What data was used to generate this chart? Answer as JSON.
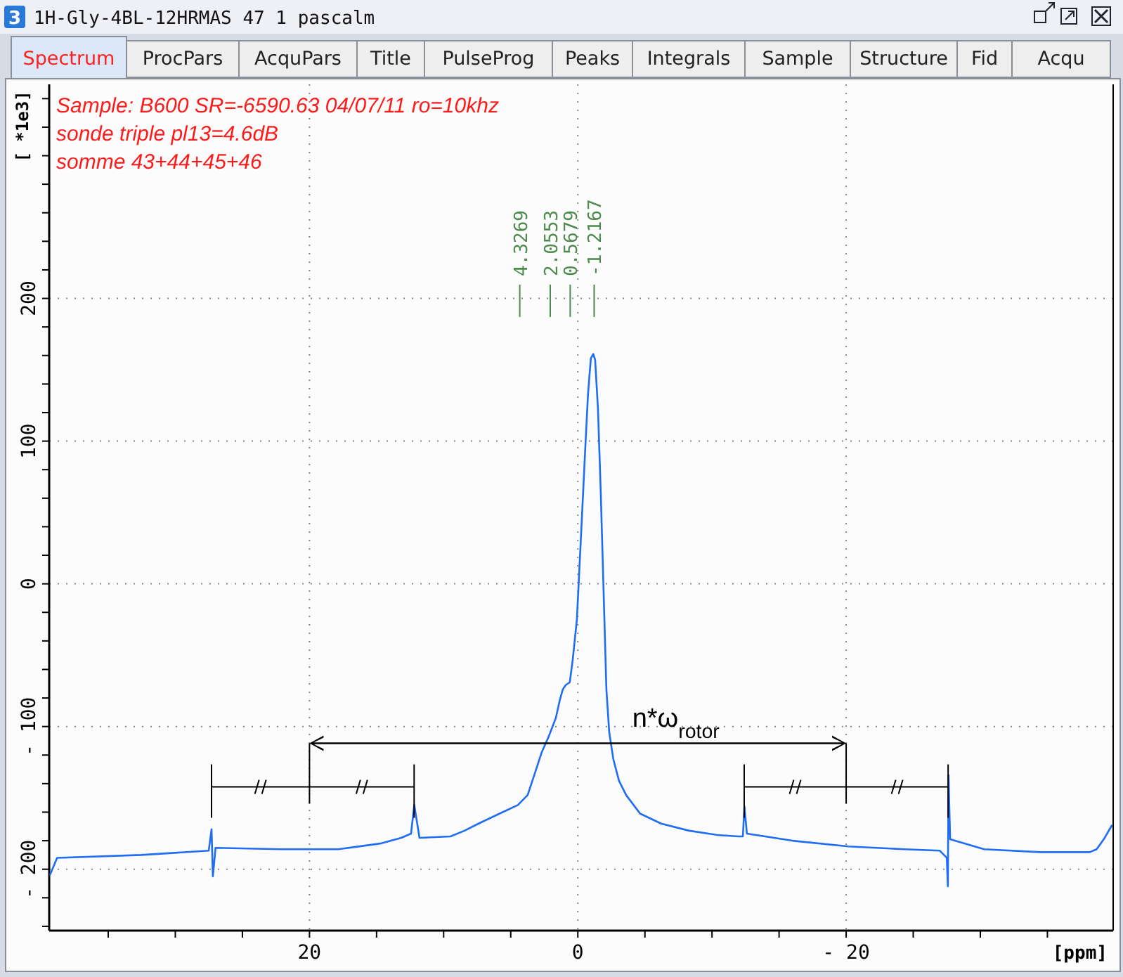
{
  "chart_data": {
    "type": "line",
    "xlabel": "[ppm]",
    "ylabel": "[ *1e3]",
    "xlim": [
      39.4,
      -39.9
    ],
    "ylim": [
      -243,
      350
    ],
    "xticks": [
      {
        "value": 35,
        "label": null
      },
      {
        "value": 30,
        "label": null
      },
      {
        "value": 25,
        "label": null
      },
      20,
      {
        "value": 15,
        "label": null
      },
      {
        "value": 10,
        "label": null
      },
      {
        "value": 5,
        "label": null
      },
      0,
      {
        "value": -5,
        "label": null
      },
      {
        "value": -10,
        "label": null
      },
      {
        "value": -15,
        "label": null
      },
      {
        "value": -20,
        "label": "- 20"
      },
      {
        "value": -25,
        "label": null
      },
      {
        "value": -30,
        "label": null
      },
      {
        "value": -35,
        "label": null
      }
    ],
    "yticks": [
      {
        "value": -240,
        "label": null
      },
      {
        "value": -220,
        "label": null
      },
      {
        "value": -200,
        "label": "- 200"
      },
      {
        "value": -180,
        "label": null
      },
      {
        "value": -160,
        "label": null
      },
      {
        "value": -140,
        "label": null
      },
      {
        "value": -120,
        "label": null
      },
      {
        "value": -100,
        "label": "- 100"
      },
      {
        "value": -80,
        "label": null
      },
      {
        "value": -60,
        "label": null
      },
      {
        "value": -40,
        "label": null
      },
      {
        "value": -20,
        "label": null
      },
      0,
      {
        "value": 20,
        "label": null
      },
      {
        "value": 40,
        "label": null
      },
      {
        "value": 60,
        "label": null
      },
      {
        "value": 80,
        "label": null
      },
      100,
      {
        "value": 120,
        "label": null
      },
      {
        "value": 140,
        "label": null
      },
      {
        "value": 160,
        "label": null
      },
      {
        "value": 180,
        "label": null
      },
      200,
      {
        "value": 220,
        "label": null
      },
      {
        "value": 240,
        "label": null
      },
      {
        "value": 260,
        "label": null
      },
      {
        "value": 280,
        "label": null
      },
      {
        "value": 300,
        "label": null
      },
      {
        "value": 320,
        "label": null
      },
      {
        "value": 340,
        "label": null
      }
    ],
    "grid": true,
    "marker": "none",
    "line_style": "solid",
    "series": [
      {
        "color": "#1f6cf5",
        "x": [
          39.34,
          38.81,
          32.53,
          27.51,
          27.3,
          27.2,
          27.0,
          22.06,
          17.87,
          14.73,
          13.16,
          12.43,
          12.19,
          11.8,
          9.49,
          8.45,
          7.4,
          5.83,
          4.47,
          3.74,
          3.21,
          2.69,
          2.17,
          1.64,
          1.33,
          1.12,
          0.91,
          0.6,
          0.39,
          0.07,
          -0.24,
          -0.55,
          -0.76,
          -0.97,
          -1.15,
          -1.29,
          -1.5,
          -1.71,
          -1.92,
          -2.13,
          -2.34,
          -2.65,
          -3.07,
          -3.6,
          -4.64,
          -6.21,
          -8.3,
          -10.4,
          -11.97,
          -12.3,
          -12.42,
          -12.6,
          -15.99,
          -20.17,
          -24.36,
          -26.98,
          -27.5,
          -27.58,
          -27.63,
          -27.75,
          -30.29,
          -34.49,
          -38.15,
          -38.67,
          -39.2,
          -39.82
        ],
        "values": [
          -204,
          -192,
          -190,
          -187,
          -172,
          -205,
          -185,
          -186,
          -186,
          -182,
          -178,
          -175,
          -155,
          -178,
          -177,
          -173,
          -168,
          -161,
          -155,
          -148,
          -133,
          -118,
          -107,
          -94,
          -81,
          -74,
          -71,
          -69,
          -54,
          -25,
          34,
          94,
          133,
          158,
          161,
          157,
          123,
          64,
          -5,
          -74,
          -104,
          -123,
          -138,
          -148,
          -161,
          -168,
          -173,
          -176,
          -177,
          -177,
          -156,
          -175,
          -180,
          -184,
          -186,
          -187,
          -192,
          -212,
          -134,
          -179,
          -186,
          -188,
          -188,
          -186,
          -179,
          -169
        ]
      }
    ],
    "annotations": [
      "1H-Gly-4BL-12HRMAS  47  1  pascalm",
      "3",
      "Spectrum",
      "ProcPars",
      "AcquPars",
      "Title",
      "PulseProg",
      "Peaks",
      "Integrals",
      "Sample",
      "Structure",
      "Fid",
      "Acqu",
      "Sample:  B600  SR=-6590.63   04/07/11 ro=10khz",
      "sonde triple pl13=4.6dB",
      "somme 43+44+45+46",
      {
        "text": "4.3269",
        "x": 4.3269
      },
      {
        "text": "2.0553",
        "x": 2.0553
      },
      {
        "text": "0.5679",
        "x": 0.5679
      },
      {
        "text": "-1.2167",
        "x": -1.2167
      },
      "n*ω$_{rotor}$"
    ]
  }
}
